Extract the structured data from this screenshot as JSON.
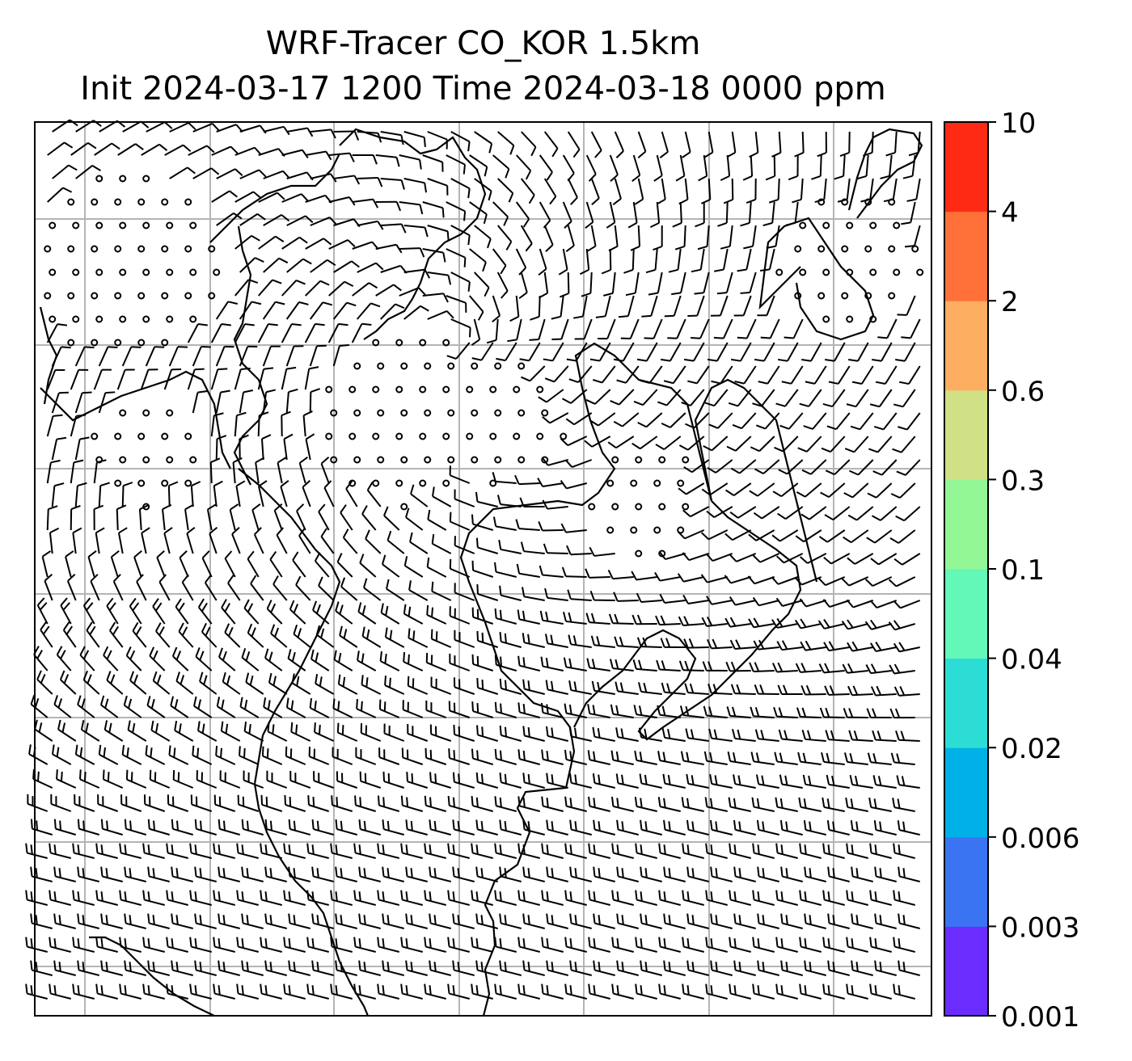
{
  "title": {
    "line1": "WRF-Tracer CO_KOR 1.5km",
    "line2": "Init 2024-03-17 1200 Time 2024-03-18 0000 ppm"
  },
  "colorbar": {
    "levels": [
      "0.001",
      "0.003",
      "0.006",
      "0.02",
      "0.04",
      "0.1",
      "0.3",
      "0.6",
      "2",
      "4",
      "10"
    ],
    "colors": [
      "#6a2cff",
      "#3a74f2",
      "#00b1e8",
      "#2cddd5",
      "#63f7b8",
      "#93f796",
      "#d0e085",
      "#fdae61",
      "#ff7139",
      "#ff2a14"
    ]
  },
  "map": {
    "field_fill": "none",
    "gridlines": true,
    "wind_barbs": true,
    "coastlines": true
  }
}
